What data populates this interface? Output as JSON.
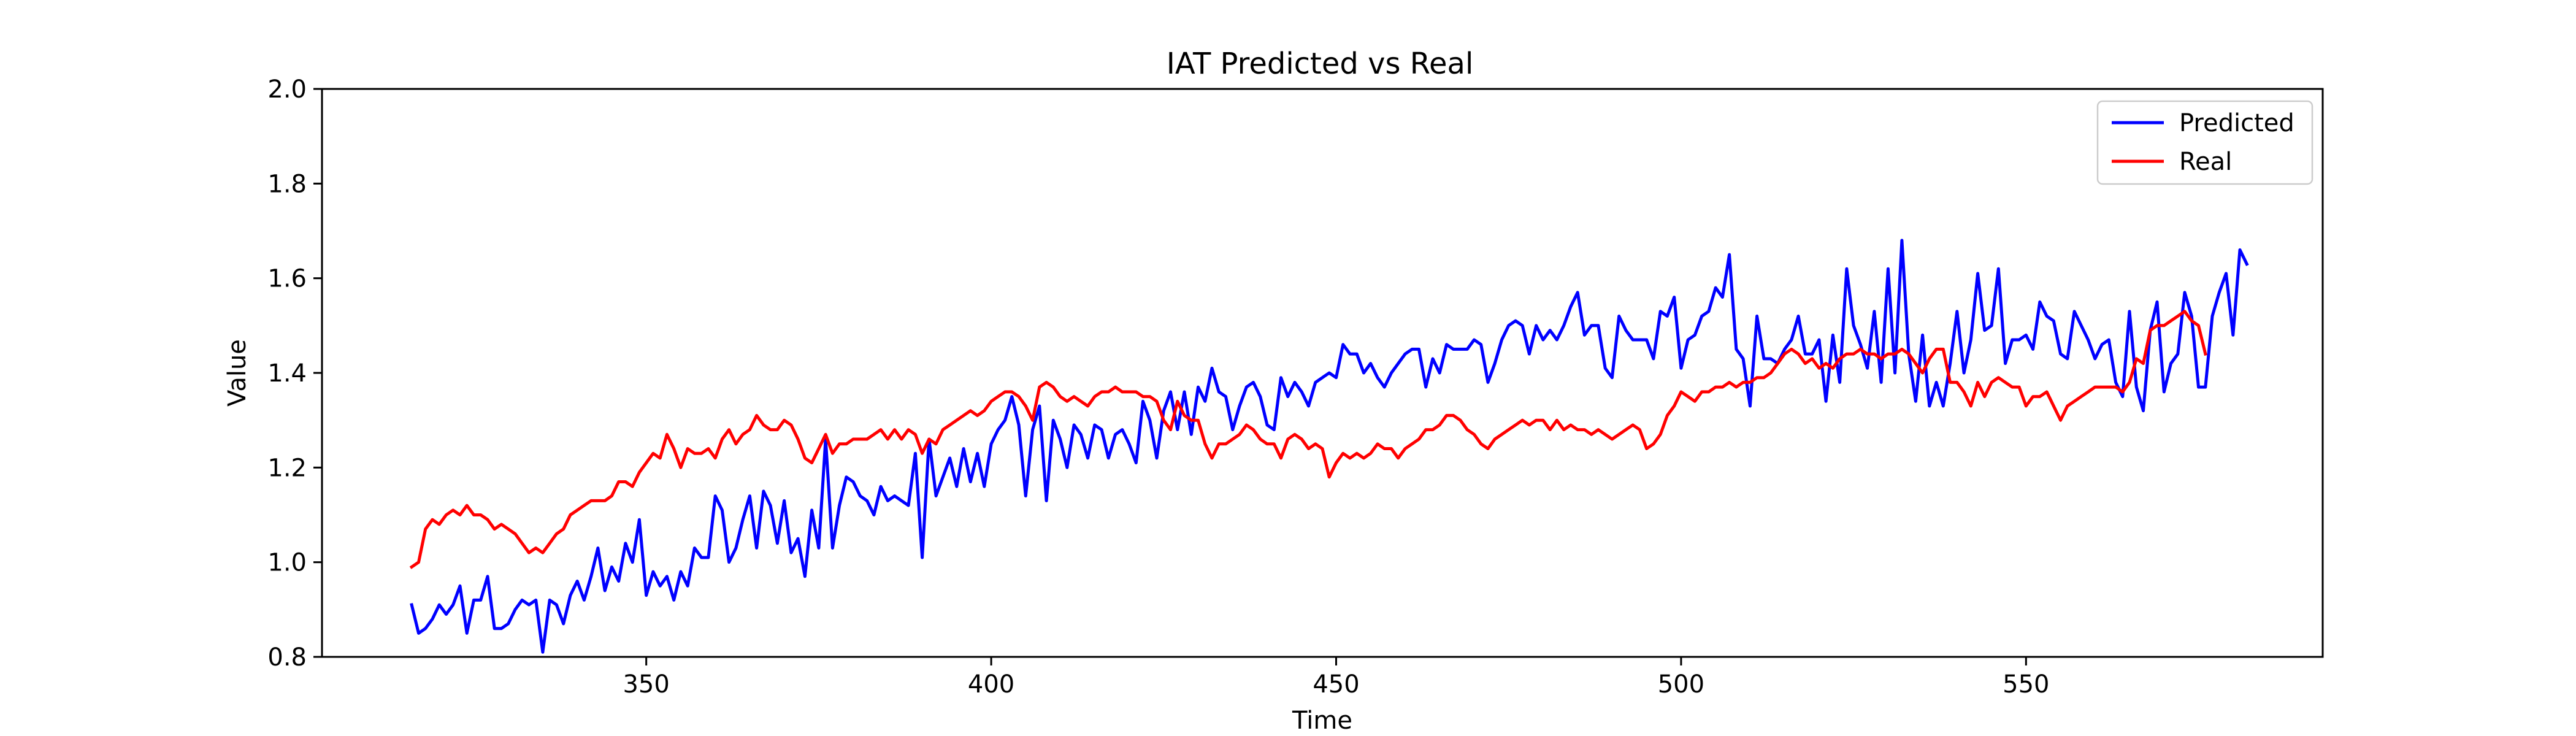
{
  "chart_data": {
    "type": "line",
    "title": "IAT Predicted vs Real",
    "xlabel": "Time",
    "ylabel": "Value",
    "xlim": [
      303,
      593
    ],
    "ylim": [
      0.8,
      2.0
    ],
    "x_ticks": [
      350,
      400,
      450,
      500,
      550
    ],
    "x_tick_labels": [
      "350",
      "400",
      "450",
      "500",
      "550"
    ],
    "y_ticks": [
      0.8,
      1.0,
      1.2,
      1.4,
      1.6,
      1.8,
      2.0
    ],
    "y_tick_labels": [
      "0.8",
      "1.0",
      "1.2",
      "1.4",
      "1.6",
      "1.8",
      "2.0"
    ],
    "grid": false,
    "legend_position": "top-right",
    "x_start": 316,
    "x_step": 1,
    "series": [
      {
        "name": "Predicted",
        "color": "#0000ff",
        "values": [
          0.91,
          0.85,
          0.86,
          0.88,
          0.91,
          0.89,
          0.91,
          0.95,
          0.85,
          0.92,
          0.92,
          0.97,
          0.86,
          0.86,
          0.87,
          0.9,
          0.92,
          0.91,
          0.92,
          0.81,
          0.92,
          0.91,
          0.87,
          0.93,
          0.96,
          0.92,
          0.97,
          1.03,
          0.94,
          0.99,
          0.96,
          1.04,
          1.0,
          1.09,
          0.93,
          0.98,
          0.95,
          0.97,
          0.92,
          0.98,
          0.95,
          1.03,
          1.01,
          1.01,
          1.14,
          1.11,
          1.0,
          1.03,
          1.09,
          1.14,
          1.03,
          1.15,
          1.12,
          1.04,
          1.13,
          1.02,
          1.05,
          0.97,
          1.11,
          1.03,
          1.26,
          1.03,
          1.12,
          1.18,
          1.17,
          1.14,
          1.13,
          1.1,
          1.16,
          1.13,
          1.14,
          1.13,
          1.12,
          1.23,
          1.01,
          1.26,
          1.14,
          1.18,
          1.22,
          1.16,
          1.24,
          1.17,
          1.23,
          1.16,
          1.25,
          1.28,
          1.3,
          1.35,
          1.29,
          1.14,
          1.28,
          1.33,
          1.13,
          1.3,
          1.26,
          1.2,
          1.29,
          1.27,
          1.22,
          1.29,
          1.28,
          1.22,
          1.27,
          1.28,
          1.25,
          1.21,
          1.34,
          1.3,
          1.22,
          1.32,
          1.36,
          1.28,
          1.36,
          1.27,
          1.37,
          1.34,
          1.41,
          1.36,
          1.35,
          1.28,
          1.33,
          1.37,
          1.38,
          1.35,
          1.29,
          1.28,
          1.39,
          1.35,
          1.38,
          1.36,
          1.33,
          1.38,
          1.39,
          1.4,
          1.39,
          1.46,
          1.44,
          1.44,
          1.4,
          1.42,
          1.39,
          1.37,
          1.4,
          1.42,
          1.44,
          1.45,
          1.45,
          1.37,
          1.43,
          1.4,
          1.46,
          1.45,
          1.45,
          1.45,
          1.47,
          1.46,
          1.38,
          1.42,
          1.47,
          1.5,
          1.51,
          1.5,
          1.44,
          1.5,
          1.47,
          1.49,
          1.47,
          1.5,
          1.54,
          1.57,
          1.48,
          1.5,
          1.5,
          1.41,
          1.39,
          1.52,
          1.49,
          1.47,
          1.47,
          1.47,
          1.43,
          1.53,
          1.52,
          1.56,
          1.41,
          1.47,
          1.48,
          1.52,
          1.53,
          1.58,
          1.56,
          1.65,
          1.45,
          1.43,
          1.33,
          1.52,
          1.43,
          1.43,
          1.42,
          1.45,
          1.47,
          1.52,
          1.44,
          1.44,
          1.47,
          1.34,
          1.48,
          1.38,
          1.62,
          1.5,
          1.46,
          1.41,
          1.53,
          1.38,
          1.62,
          1.4,
          1.68,
          1.44,
          1.34,
          1.48,
          1.33,
          1.38,
          1.33,
          1.42,
          1.53,
          1.4,
          1.47,
          1.61,
          1.49,
          1.5,
          1.62,
          1.42,
          1.47,
          1.47,
          1.48,
          1.45,
          1.55,
          1.52,
          1.51,
          1.44,
          1.43,
          1.53,
          1.5,
          1.47,
          1.43,
          1.46,
          1.47,
          1.38,
          1.35,
          1.53,
          1.37,
          1.32,
          1.49,
          1.55,
          1.36,
          1.42,
          1.44,
          1.57,
          1.52,
          1.37,
          1.37,
          1.52,
          1.57,
          1.61,
          1.48,
          1.66,
          1.63
        ]
      },
      {
        "name": "Real",
        "color": "#ff0000",
        "values": [
          0.99,
          1.0,
          1.07,
          1.09,
          1.08,
          1.1,
          1.11,
          1.1,
          1.12,
          1.1,
          1.1,
          1.09,
          1.07,
          1.08,
          1.07,
          1.06,
          1.04,
          1.02,
          1.03,
          1.02,
          1.04,
          1.06,
          1.07,
          1.1,
          1.11,
          1.12,
          1.13,
          1.13,
          1.13,
          1.14,
          1.17,
          1.17,
          1.16,
          1.19,
          1.21,
          1.23,
          1.22,
          1.27,
          1.24,
          1.2,
          1.24,
          1.23,
          1.23,
          1.24,
          1.22,
          1.26,
          1.28,
          1.25,
          1.27,
          1.28,
          1.31,
          1.29,
          1.28,
          1.28,
          1.3,
          1.29,
          1.26,
          1.22,
          1.21,
          1.24,
          1.27,
          1.23,
          1.25,
          1.25,
          1.26,
          1.26,
          1.26,
          1.27,
          1.28,
          1.26,
          1.28,
          1.26,
          1.28,
          1.27,
          1.23,
          1.26,
          1.25,
          1.28,
          1.29,
          1.3,
          1.31,
          1.32,
          1.31,
          1.32,
          1.34,
          1.35,
          1.36,
          1.36,
          1.35,
          1.33,
          1.3,
          1.37,
          1.38,
          1.37,
          1.35,
          1.34,
          1.35,
          1.34,
          1.33,
          1.35,
          1.36,
          1.36,
          1.37,
          1.36,
          1.36,
          1.36,
          1.35,
          1.35,
          1.34,
          1.3,
          1.28,
          1.34,
          1.31,
          1.3,
          1.3,
          1.25,
          1.22,
          1.25,
          1.25,
          1.26,
          1.27,
          1.29,
          1.28,
          1.26,
          1.25,
          1.25,
          1.22,
          1.26,
          1.27,
          1.26,
          1.24,
          1.25,
          1.24,
          1.18,
          1.21,
          1.23,
          1.22,
          1.23,
          1.22,
          1.23,
          1.25,
          1.24,
          1.24,
          1.22,
          1.24,
          1.25,
          1.26,
          1.28,
          1.28,
          1.29,
          1.31,
          1.31,
          1.3,
          1.28,
          1.27,
          1.25,
          1.24,
          1.26,
          1.27,
          1.28,
          1.29,
          1.3,
          1.29,
          1.3,
          1.3,
          1.28,
          1.3,
          1.28,
          1.29,
          1.28,
          1.28,
          1.27,
          1.28,
          1.27,
          1.26,
          1.27,
          1.28,
          1.29,
          1.28,
          1.24,
          1.25,
          1.27,
          1.31,
          1.33,
          1.36,
          1.35,
          1.34,
          1.36,
          1.36,
          1.37,
          1.37,
          1.38,
          1.37,
          1.38,
          1.38,
          1.39,
          1.39,
          1.4,
          1.42,
          1.44,
          1.45,
          1.44,
          1.42,
          1.43,
          1.41,
          1.42,
          1.41,
          1.43,
          1.44,
          1.44,
          1.45,
          1.44,
          1.44,
          1.43,
          1.44,
          1.44,
          1.45,
          1.44,
          1.42,
          1.4,
          1.43,
          1.45,
          1.45,
          1.38,
          1.38,
          1.36,
          1.33,
          1.38,
          1.35,
          1.38,
          1.39,
          1.38,
          1.37,
          1.37,
          1.33,
          1.35,
          1.35,
          1.36,
          1.33,
          1.3,
          1.33,
          1.34,
          1.35,
          1.36,
          1.37,
          1.37,
          1.37,
          1.37,
          1.36,
          1.38,
          1.43,
          1.42,
          1.49,
          1.5,
          1.5,
          1.51,
          1.52,
          1.53,
          1.51,
          1.5,
          1.44
        ]
      }
    ]
  }
}
